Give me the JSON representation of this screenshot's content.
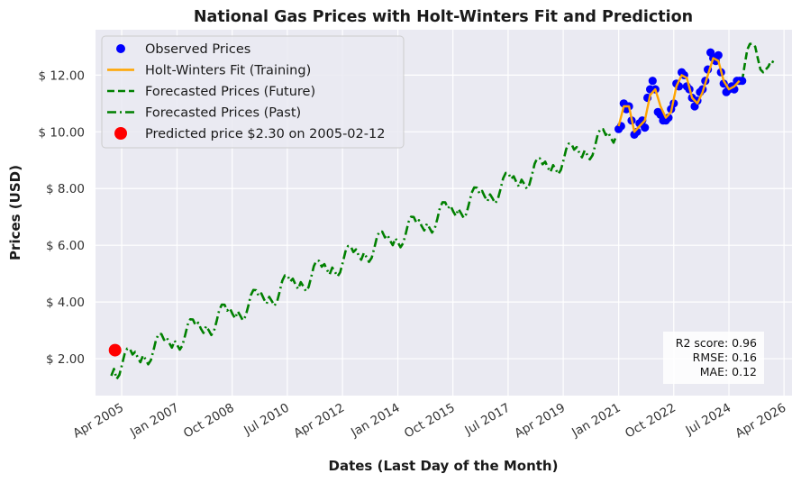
{
  "chart_data": {
    "type": "line",
    "title": "National Gas Prices with Holt-Winters Fit and Prediction",
    "xlabel": "Dates (Last Day of the Month)",
    "ylabel": "Prices (USD)",
    "x_type": "date",
    "xlim": [
      "2004-07-01",
      "2026-07-31"
    ],
    "ylim": [
      0.7,
      13.6
    ],
    "y_tick_values": [
      2,
      4,
      6,
      8,
      10,
      12
    ],
    "y_tick_labels": [
      "$ 2.00",
      "$ 4.00",
      "$ 6.00",
      "$ 8.00",
      "$ 10.00",
      "$ 12.00"
    ],
    "x_tick_dates": [
      "2005-04-30",
      "2007-01-31",
      "2008-10-31",
      "2010-07-31",
      "2012-04-30",
      "2014-01-31",
      "2015-10-31",
      "2017-07-31",
      "2019-04-30",
      "2021-01-31",
      "2022-10-31",
      "2024-07-31",
      "2026-04-30"
    ],
    "x_tick_labels": [
      "Apr 2005",
      "Jan 2007",
      "Oct 2008",
      "Jul 2010",
      "Apr 2012",
      "Jan 2014",
      "Oct 2015",
      "Jul 2017",
      "Apr 2019",
      "Jan 2021",
      "Oct 2022",
      "Jul 2024",
      "Apr 2026"
    ],
    "grid": true,
    "legend_position": "top-left",
    "colors": {
      "background": "#eaeaf2",
      "grid": "#ffffff",
      "observed": "#0000ff",
      "fit": "#ffa500",
      "forecast": "#008000",
      "predicted": "#ff0000"
    },
    "legend": [
      {
        "label": "Observed Prices",
        "style": "scatter",
        "color": "#0000ff"
      },
      {
        "label": "Holt-Winters Fit (Training)",
        "style": "solid",
        "color": "#ffa500"
      },
      {
        "label": "Forecasted Prices (Future)",
        "style": "dashed",
        "color": "#008000"
      },
      {
        "label": "Forecasted Prices (Past)",
        "style": "dashdot",
        "color": "#008000"
      },
      {
        "label": "Predicted price $2.30 on 2005-02-12",
        "style": "bigdot",
        "color": "#ff0000"
      }
    ],
    "metrics": [
      "R2 score: 0.96",
      "RMSE: 0.16",
      "MAE: 0.12"
    ],
    "predicted_point": {
      "date": "2005-02-12",
      "value": 2.3
    },
    "observed": {
      "dates": [
        "2021-01-31",
        "2021-02-28",
        "2021-03-31",
        "2021-04-30",
        "2021-05-31",
        "2021-06-30",
        "2021-07-31",
        "2021-08-31",
        "2021-09-30",
        "2021-10-31",
        "2021-11-30",
        "2021-12-31",
        "2022-01-31",
        "2022-02-28",
        "2022-03-31",
        "2022-04-30",
        "2022-05-31",
        "2022-06-30",
        "2022-07-31",
        "2022-08-31",
        "2022-09-30",
        "2022-10-31",
        "2022-11-30",
        "2022-12-31",
        "2023-01-31",
        "2023-02-28",
        "2023-03-31",
        "2023-04-30",
        "2023-05-31",
        "2023-06-30",
        "2023-07-31",
        "2023-08-31",
        "2023-09-30",
        "2023-10-31",
        "2023-11-30",
        "2023-12-31",
        "2024-01-31",
        "2024-02-29",
        "2024-03-31",
        "2024-04-30",
        "2024-05-31",
        "2024-06-30",
        "2024-07-31",
        "2024-08-31",
        "2024-09-30",
        "2024-10-31",
        "2024-11-30",
        "2024-12-31"
      ],
      "values": [
        10.1,
        10.2,
        11.0,
        10.8,
        10.9,
        10.4,
        9.9,
        10.0,
        10.3,
        10.4,
        10.15,
        11.2,
        11.5,
        11.8,
        11.5,
        10.7,
        10.6,
        10.4,
        10.4,
        10.5,
        10.8,
        11.0,
        11.7,
        11.6,
        12.1,
        12.0,
        11.6,
        11.5,
        11.2,
        10.9,
        11.1,
        11.4,
        11.5,
        11.8,
        12.2,
        12.8,
        12.6,
        12.5,
        12.7,
        12.1,
        11.7,
        11.4,
        11.5,
        11.6,
        11.5,
        11.8,
        11.8,
        11.8
      ]
    },
    "fit": {
      "dates": [
        "2021-01-31",
        "2021-03-31",
        "2021-05-31",
        "2021-07-31",
        "2021-09-30",
        "2021-11-30",
        "2022-01-31",
        "2022-03-31",
        "2022-05-31",
        "2022-07-31",
        "2022-09-30",
        "2022-11-30",
        "2023-01-31",
        "2023-03-31",
        "2023-05-31",
        "2023-07-31",
        "2023-09-30",
        "2023-11-30",
        "2024-01-31",
        "2024-03-31",
        "2024-05-31",
        "2024-07-31",
        "2024-09-30",
        "2024-11-30"
      ],
      "values": [
        10.2,
        10.9,
        10.9,
        10.0,
        10.2,
        10.4,
        11.3,
        11.5,
        10.9,
        10.5,
        10.7,
        11.6,
        12.0,
        11.9,
        11.2,
        11.0,
        11.4,
        12.0,
        12.6,
        12.5,
        11.8,
        11.5,
        11.6,
        11.8
      ]
    },
    "forecast_past": {
      "start": "2004-12-31",
      "end": "2021-01-31",
      "trend_start": 1.65,
      "trend_end": 9.95,
      "seasonal_amplitude": 0.45
    },
    "forecast_future": {
      "dates": [
        "2024-12-31",
        "2025-01-31",
        "2025-02-28",
        "2025-03-31",
        "2025-04-30",
        "2025-05-31",
        "2025-06-30",
        "2025-07-31",
        "2025-08-31",
        "2025-09-30",
        "2025-10-31",
        "2025-11-30",
        "2025-12-31"
      ],
      "values": [
        11.8,
        12.4,
        12.9,
        13.1,
        13.1,
        13.0,
        12.6,
        12.2,
        12.1,
        12.2,
        12.3,
        12.5,
        12.45
      ]
    }
  }
}
